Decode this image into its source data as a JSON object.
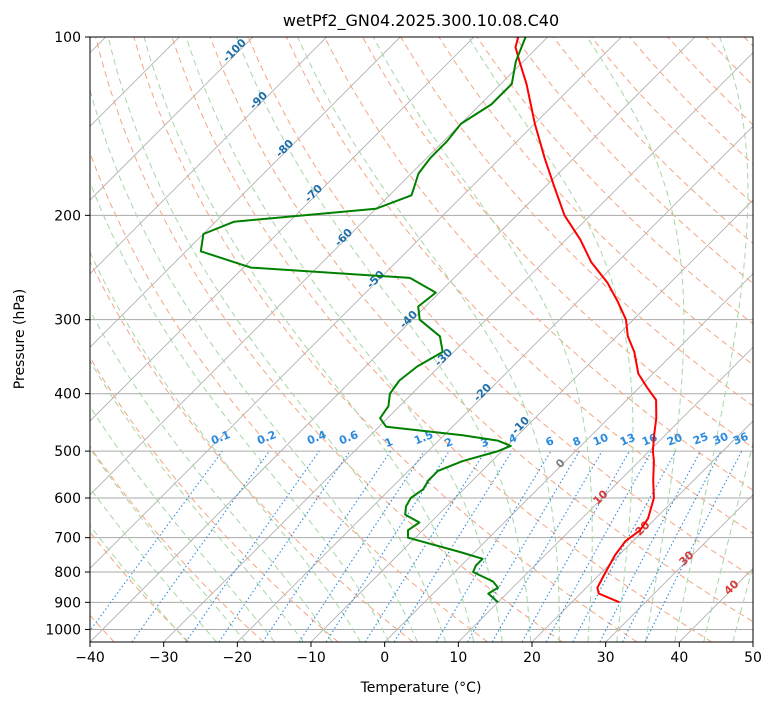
{
  "chart_data": {
    "type": "line",
    "title": "wetPf2_GN04.2025.300.10.08.C40",
    "xlabel": "Temperature (°C)",
    "ylabel": "Pressure (hPa)",
    "xlim": [
      -40,
      50
    ],
    "ylim": [
      1050,
      100
    ],
    "y_scale": "log",
    "skew": 45,
    "grid": true,
    "x_ticks": [
      -40,
      -30,
      -20,
      -10,
      0,
      10,
      20,
      30,
      40,
      50
    ],
    "y_ticks": [
      1000,
      900,
      800,
      700,
      600,
      500,
      400,
      300,
      200,
      100
    ],
    "series": [
      {
        "color": "#ff0000",
        "points": [
          [
            900,
            26.5
          ],
          [
            870,
            22.5
          ],
          [
            850,
            21.5
          ],
          [
            800,
            20.5
          ],
          [
            750,
            19.5
          ],
          [
            710,
            19.0
          ],
          [
            680,
            19.5
          ],
          [
            650,
            19.0
          ],
          [
            600,
            17.0
          ],
          [
            560,
            14.5
          ],
          [
            520,
            12.0
          ],
          [
            500,
            10.5
          ],
          [
            470,
            8.5
          ],
          [
            440,
            6.5
          ],
          [
            410,
            4.0
          ],
          [
            390,
            1.0
          ],
          [
            370,
            -2.0
          ],
          [
            340,
            -5.5
          ],
          [
            320,
            -8.5
          ],
          [
            300,
            -11.0
          ],
          [
            280,
            -14.5
          ],
          [
            260,
            -18.5
          ],
          [
            240,
            -23.5
          ],
          [
            220,
            -28.0
          ],
          [
            200,
            -33.5
          ],
          [
            180,
            -38.5
          ],
          [
            160,
            -44.0
          ],
          [
            140,
            -50.0
          ],
          [
            120,
            -56.5
          ],
          [
            110,
            -60.5
          ],
          [
            104,
            -63.0
          ],
          [
            100,
            -64.0
          ]
        ]
      },
      {
        "color": "#008000",
        "points": [
          [
            900,
            10.0
          ],
          [
            870,
            7.5
          ],
          [
            850,
            8.0
          ],
          [
            830,
            6.5
          ],
          [
            800,
            2.5
          ],
          [
            780,
            2.0
          ],
          [
            760,
            2.0
          ],
          [
            740,
            -2.0
          ],
          [
            700,
            -11.0
          ],
          [
            680,
            -12.0
          ],
          [
            660,
            -11.5
          ],
          [
            640,
            -14.5
          ],
          [
            620,
            -15.5
          ],
          [
            600,
            -16.0
          ],
          [
            580,
            -15.5
          ],
          [
            560,
            -16.0
          ],
          [
            540,
            -16.0
          ],
          [
            520,
            -14.0
          ],
          [
            500,
            -10.5
          ],
          [
            490,
            -9.5
          ],
          [
            480,
            -12.0
          ],
          [
            470,
            -17.5
          ],
          [
            455,
            -29.0
          ],
          [
            440,
            -31.0
          ],
          [
            420,
            -31.5
          ],
          [
            400,
            -33.0
          ],
          [
            380,
            -33.5
          ],
          [
            360,
            -33.0
          ],
          [
            340,
            -31.5
          ],
          [
            320,
            -34.0
          ],
          [
            300,
            -39.0
          ],
          [
            285,
            -41.0
          ],
          [
            270,
            -40.5
          ],
          [
            255,
            -46.0
          ],
          [
            245,
            -69.0
          ],
          [
            230,
            -78.0
          ],
          [
            215,
            -80.0
          ],
          [
            205,
            -77.5
          ],
          [
            195,
            -60.0
          ],
          [
            185,
            -57.0
          ],
          [
            170,
            -59.0
          ],
          [
            160,
            -59.5
          ],
          [
            150,
            -59.5
          ],
          [
            140,
            -60.0
          ],
          [
            130,
            -58.5
          ],
          [
            120,
            -58.5
          ],
          [
            110,
            -61.0
          ],
          [
            100,
            -63.0
          ]
        ]
      }
    ],
    "dry_adiabat_labels": [
      "-100",
      "-90",
      "-80",
      "-70",
      "-60",
      "-50",
      "-40",
      "-30",
      "-20",
      "-10"
    ],
    "moist_adiabat_labels": [
      "0",
      "10",
      "20",
      "30",
      "40"
    ],
    "mixing_ratio_labels": [
      "0.1",
      "0.2",
      "0.4",
      "0.6",
      "1",
      "1.5",
      "2",
      "3",
      "4",
      "6",
      "8",
      "10",
      "13",
      "16",
      "20",
      "25",
      "30",
      "36"
    ]
  },
  "colors": {
    "temperature": "#ff0000",
    "dewpoint": "#008000",
    "isotherm": "#aaaaaa",
    "isobar": "#aaaaaa",
    "dry_adiabat": "#f4a582",
    "moist_adiabat": "#a6d6a6",
    "mixing_ratio": "#2a8ae0"
  }
}
